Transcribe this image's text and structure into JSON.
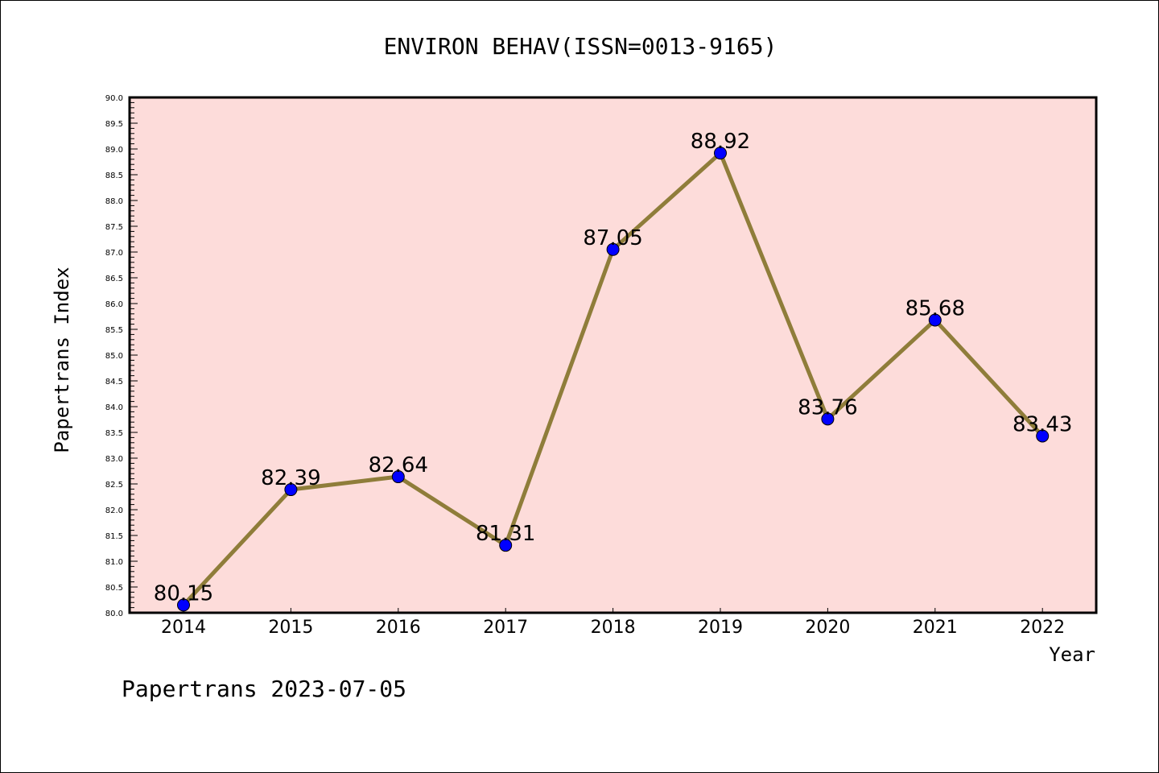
{
  "chart_data": {
    "type": "line",
    "title": "ENVIRON BEHAV(ISSN=0013-9165)",
    "xlabel": "Year",
    "ylabel": "Papertrans Index",
    "categories": [
      "2014",
      "2015",
      "2016",
      "2017",
      "2018",
      "2019",
      "2020",
      "2021",
      "2022"
    ],
    "series": [
      {
        "name": "Papertrans Index",
        "values": [
          80.15,
          82.39,
          82.64,
          81.31,
          87.05,
          88.92,
          83.76,
          85.68,
          83.43
        ]
      }
    ],
    "data_labels": [
      "80.15",
      "82.39",
      "82.64",
      "81.31",
      "87.05",
      "88.92",
      "83.76",
      "85.68",
      "83.43"
    ],
    "ylim": [
      80,
      90
    ],
    "yticks": [
      "80.0",
      "80.5",
      "81.0",
      "81.5",
      "82.0",
      "82.5",
      "83.0",
      "83.5",
      "84.0",
      "84.5",
      "85.0",
      "85.5",
      "86.0",
      "86.5",
      "87.0",
      "87.5",
      "88.0",
      "88.5",
      "89.0",
      "89.5",
      "90.0"
    ],
    "grid": false,
    "footer": "Papertrans 2023-07-05",
    "colors": {
      "plot_bg": "#fddcda",
      "line": "#8f7d3a",
      "marker": "#0000ff"
    }
  }
}
